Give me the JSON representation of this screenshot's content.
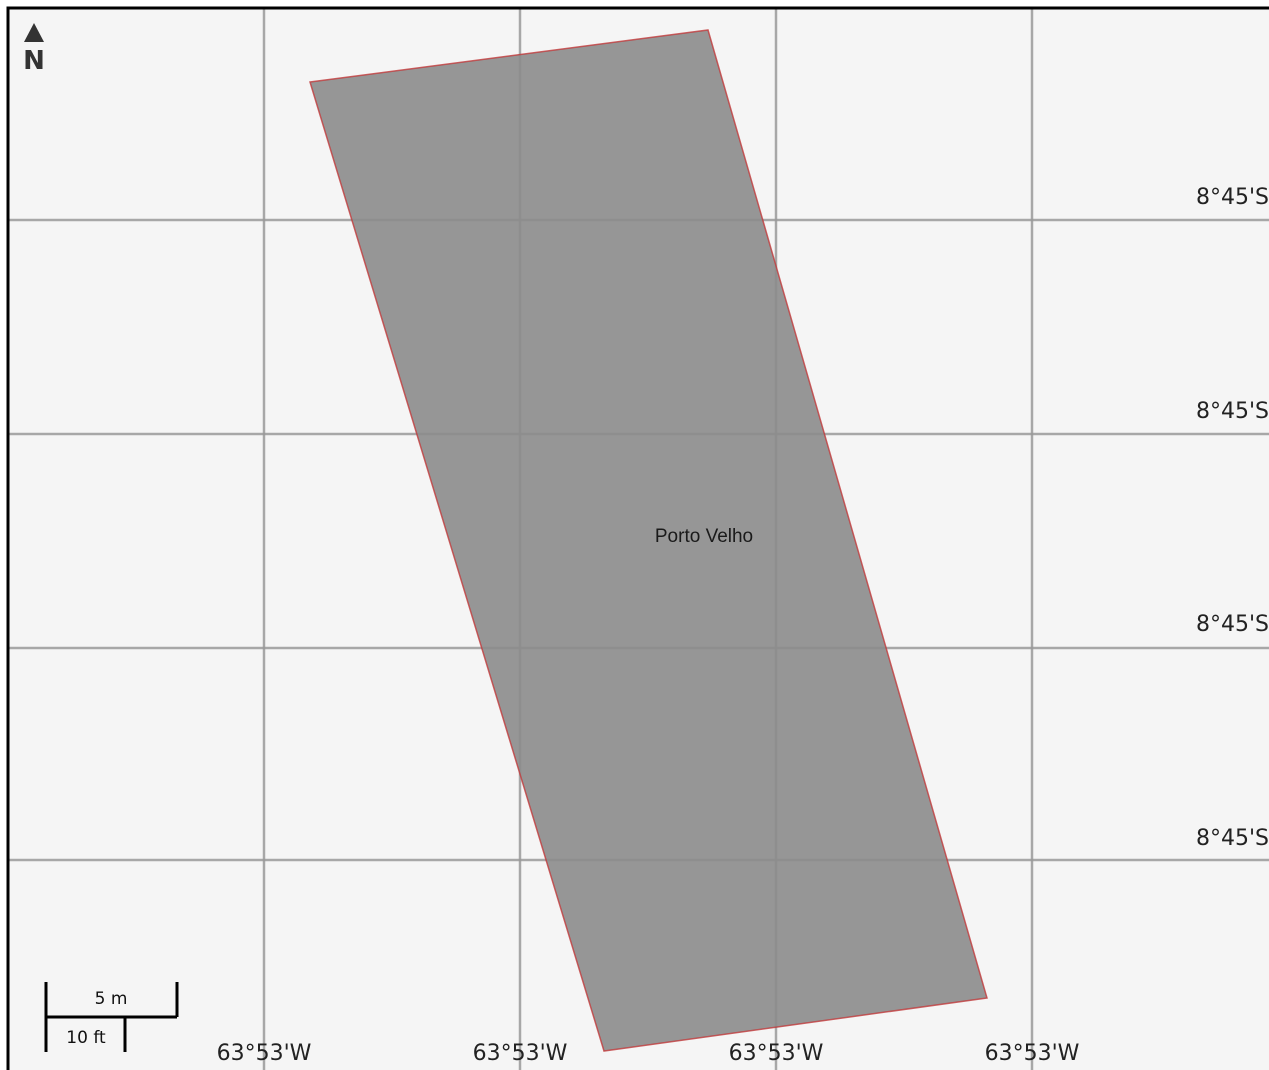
{
  "map": {
    "background_color": "#f5f5f5",
    "frame_color": "#000000",
    "grid_color": "#9a9a9a"
  },
  "north_arrow": {
    "label": "N",
    "icon": "north-arrow-icon"
  },
  "feature": {
    "label": "Porto Velho",
    "fill_color": "#8c8c8c",
    "stroke_color": "#c0393b"
  },
  "latitude_labels": [
    "8°45'S",
    "8°45'S",
    "8°45'S",
    "8°45'S"
  ],
  "longitude_labels": [
    "63°53'W",
    "63°53'W",
    "63°53'W",
    "63°53'W"
  ],
  "scale_bar": {
    "metric_label": "5 m",
    "imperial_label": "10 ft"
  }
}
